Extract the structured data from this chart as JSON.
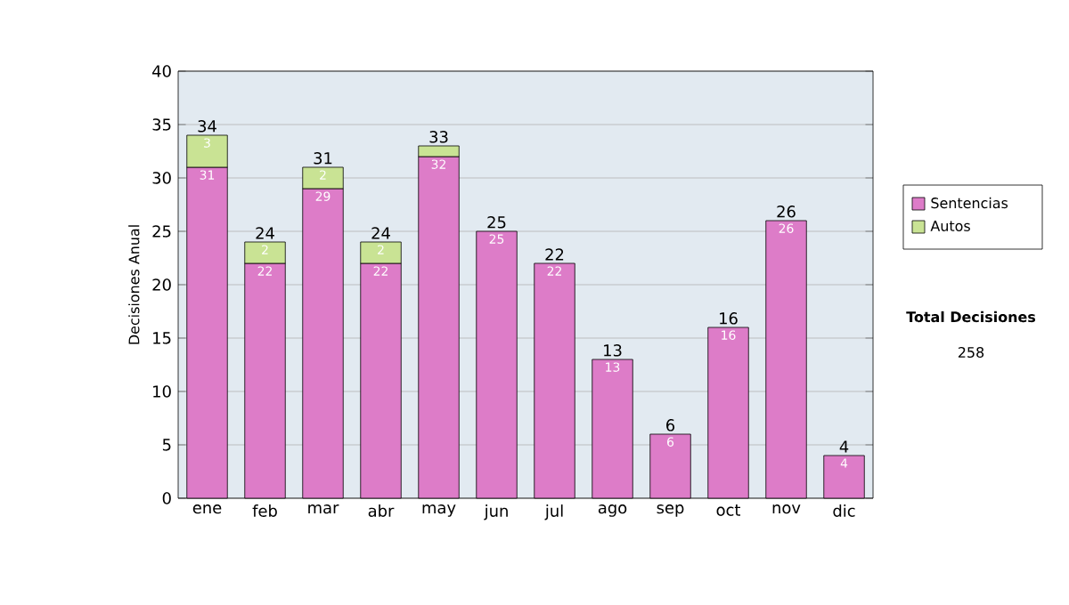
{
  "chart_data": {
    "type": "bar",
    "stacked": true,
    "ylabel": "Decisiones Anual",
    "categories": [
      "ene",
      "feb",
      "mar",
      "abr",
      "may",
      "jun",
      "jul",
      "ago",
      "sep",
      "oct",
      "nov",
      "dic"
    ],
    "series": [
      {
        "name": "Sentencias",
        "color": "#dd7cc8",
        "values": [
          31,
          22,
          29,
          22,
          32,
          25,
          22,
          13,
          6,
          16,
          26,
          4
        ],
        "value_labels": [
          "31",
          "22",
          "29",
          "22",
          "32",
          "25",
          "22",
          "13",
          "6",
          "16",
          "26",
          "4"
        ]
      },
      {
        "name": "Autos",
        "color": "#c9e394",
        "values": [
          3,
          2,
          2,
          2,
          1,
          null,
          null,
          null,
          null,
          null,
          null,
          null
        ],
        "value_labels": [
          "3",
          "2",
          "2",
          "2",
          null,
          null,
          null,
          null,
          null,
          null,
          null,
          null
        ]
      }
    ],
    "totals": [
      "34",
      "24",
      "31",
      "24",
      "33",
      "25",
      "22",
      "13",
      "6",
      "16",
      "26",
      "4"
    ],
    "ylim": [
      0,
      40
    ],
    "yticks": [
      0,
      5,
      10,
      15,
      20,
      25,
      30,
      35,
      40
    ],
    "grid": "y",
    "legend": "right",
    "annotations": [
      "Total Decisiones",
      "258"
    ]
  }
}
